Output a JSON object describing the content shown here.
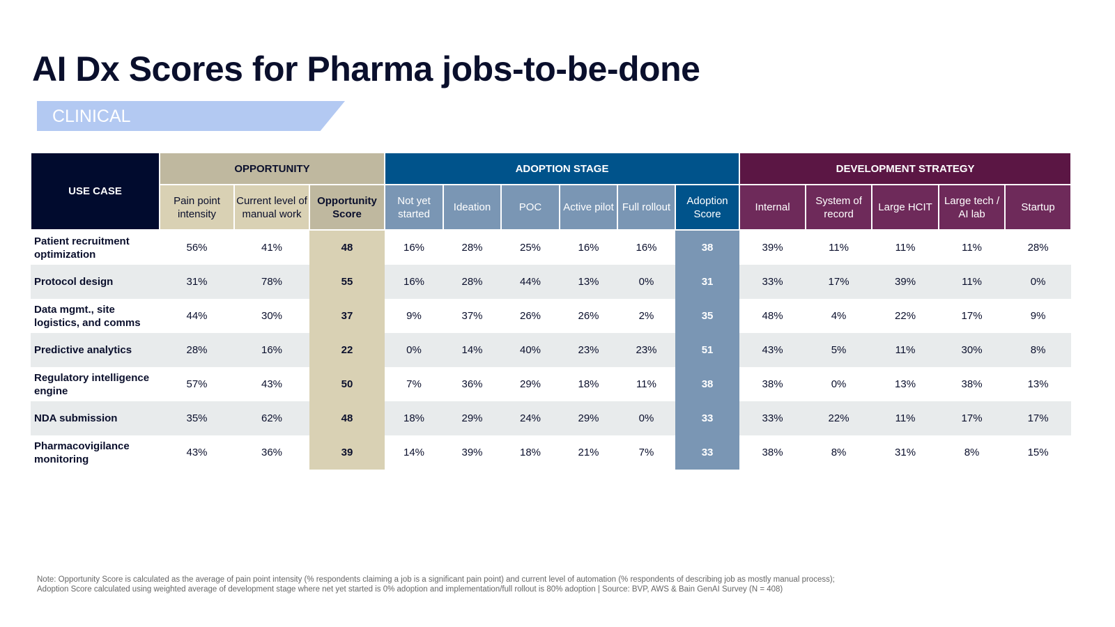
{
  "title": "AI Dx Scores for Pharma jobs-to-be-done",
  "section": "CLINICAL",
  "colors": {
    "navy": "#010b2e",
    "opportunity": "#bfb89f",
    "adoption": "#00538b",
    "development": "#5b1644",
    "banner": "#b3c9f2"
  },
  "header": {
    "use_case": "USE CASE",
    "groups": [
      "OPPORTUNITY",
      "ADOPTION STAGE",
      "DEVELOPMENT STRATEGY"
    ],
    "columns": [
      "Pain point intensity",
      "Current level of manual work",
      "Opportunity Score",
      "Not yet started",
      "Ideation",
      "POC",
      "Active pilot",
      "Full rollout",
      "Adoption Score",
      "Internal",
      "System of record",
      "Large HCIT",
      "Large tech / AI lab",
      "Startup"
    ]
  },
  "rows": [
    {
      "name": "Patient recruitment optimization",
      "values": [
        "56%",
        "41%",
        "48",
        "16%",
        "28%",
        "25%",
        "16%",
        "16%",
        "38",
        "39%",
        "11%",
        "11%",
        "11%",
        "28%"
      ]
    },
    {
      "name": "Protocol design",
      "values": [
        "31%",
        "78%",
        "55",
        "16%",
        "28%",
        "44%",
        "13%",
        "0%",
        "31",
        "33%",
        "17%",
        "39%",
        "11%",
        "0%"
      ]
    },
    {
      "name": "Data mgmt., site logistics, and comms",
      "values": [
        "44%",
        "30%",
        "37",
        "9%",
        "37%",
        "26%",
        "26%",
        "2%",
        "35",
        "48%",
        "4%",
        "22%",
        "17%",
        "9%"
      ]
    },
    {
      "name": "Predictive analytics",
      "values": [
        "28%",
        "16%",
        "22",
        "0%",
        "14%",
        "40%",
        "23%",
        "23%",
        "51",
        "43%",
        "5%",
        "11%",
        "30%",
        "8%"
      ]
    },
    {
      "name": "Regulatory intelligence engine",
      "values": [
        "57%",
        "43%",
        "50",
        "7%",
        "36%",
        "29%",
        "18%",
        "11%",
        "38",
        "38%",
        "0%",
        "13%",
        "38%",
        "13%"
      ]
    },
    {
      "name": "NDA submission",
      "values": [
        "35%",
        "62%",
        "48",
        "18%",
        "29%",
        "24%",
        "29%",
        "0%",
        "33",
        "33%",
        "22%",
        "11%",
        "17%",
        "17%"
      ]
    },
    {
      "name": "Pharmacovigilance monitoring",
      "values": [
        "43%",
        "36%",
        "39",
        "14%",
        "39%",
        "18%",
        "21%",
        "7%",
        "33",
        "38%",
        "8%",
        "31%",
        "8%",
        "15%"
      ]
    }
  ],
  "note": [
    "Note: Opportunity Score is calculated as the average of pain point intensity (% respondents claiming a job is a significant pain point) and current level of automation (% respondents of describing job as mostly manual process);",
    "Adoption Score calculated using weighted average of development stage where net yet started is 0% adoption and implementation/full rollout is 80% adoption | Source: BVP, AWS & Bain GenAI Survey (N = 408)"
  ]
}
